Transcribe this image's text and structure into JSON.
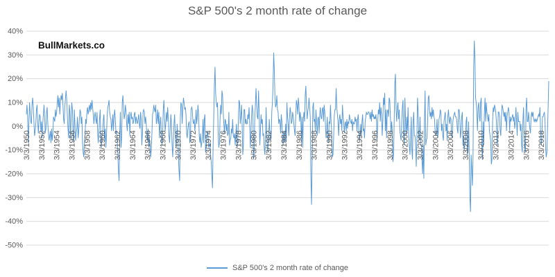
{
  "title": "S&P 500's 2 month rate of change",
  "watermark": "BullMarkets.co",
  "legend": {
    "label": "S&P 500's 2 month rate of change"
  },
  "colors": {
    "line": "#5B9BD5",
    "gridline": "#D9D9D9",
    "axis_text": "#595959",
    "title_text": "#595959",
    "background": "#FFFFFF"
  },
  "chart_data": {
    "type": "line",
    "title": "S&P 500's 2 month rate of change",
    "legend_position": "bottom-center",
    "grid": "horizontal",
    "ylim": [
      -50,
      40
    ],
    "y_tick_step_pct": 10,
    "y_tick_labels": [
      "40%",
      "30%",
      "20%",
      "10%",
      "0%",
      "-10%",
      "-20%",
      "-30%",
      "-40%",
      "-50%"
    ],
    "x_tick_labels": [
      "3/3/1950",
      "3/3/1952",
      "3/3/1954",
      "3/3/1956",
      "3/3/1958",
      "3/3/1960",
      "3/3/1962",
      "3/3/1964",
      "3/3/1966",
      "3/3/1968",
      "3/3/1970",
      "3/3/1972",
      "3/3/1974",
      "3/3/1976",
      "3/3/1978",
      "3/3/1980",
      "3/3/1982",
      "3/3/1984",
      "3/3/1986",
      "3/3/1988",
      "3/3/1990",
      "3/3/1992",
      "3/3/1994",
      "3/3/1996",
      "3/3/1998",
      "3/3/2000",
      "3/3/2002",
      "3/3/2004",
      "3/3/2006",
      "3/3/2008",
      "3/3/2010",
      "3/3/2012",
      "3/3/2014",
      "3/3/2016",
      "3/3/2018"
    ],
    "x_tick_every_points": 24,
    "series": [
      {
        "name": "S&P 500's 2 month rate of change",
        "values_pct": [
          5,
          9,
          4,
          -7,
          1,
          10,
          6,
          2,
          1,
          9,
          12,
          8,
          2,
          -4,
          -2,
          1,
          7,
          9,
          2,
          -3,
          2,
          5,
          4,
          -2,
          2,
          -5,
          1,
          5,
          9,
          4,
          -3,
          -1,
          6,
          8,
          1,
          -3,
          -6,
          -4,
          -2,
          -7,
          -1,
          -6,
          -3,
          4,
          3,
          2,
          7,
          4,
          6,
          10,
          13,
          8,
          12,
          5,
          10,
          13,
          11,
          14,
          9,
          3,
          1,
          8,
          12,
          15,
          11,
          4,
          -1,
          -5,
          9,
          6,
          -5,
          4,
          10,
          7,
          -4,
          -7,
          7,
          1,
          -6,
          -3,
          -1,
          4,
          -5,
          -2,
          3,
          7,
          6,
          1,
          4,
          -7,
          -11,
          -13,
          -7,
          -4,
          3,
          1,
          6,
          8,
          5,
          7,
          9,
          6,
          10,
          7,
          11,
          8,
          5,
          1,
          4,
          6,
          3,
          1,
          6,
          -3,
          -7,
          -2,
          3,
          7,
          -6,
          -9,
          -3,
          -2,
          3,
          5,
          -6,
          -1,
          -9,
          -4,
          4,
          8,
          9,
          11,
          6,
          4,
          3,
          -2,
          1,
          5,
          -2,
          4,
          7,
          3,
          -3,
          -2,
          -6,
          -12,
          -19,
          -23,
          -4,
          6,
          -9,
          -5,
          10,
          13,
          8,
          3,
          5,
          9,
          6,
          1,
          -2,
          5,
          1,
          6,
          -4,
          4,
          6,
          3,
          4,
          1,
          2,
          5,
          6,
          1,
          4,
          2,
          1,
          3,
          5,
          1,
          -1,
          6,
          3,
          -8,
          -3,
          6,
          7,
          6,
          1,
          4,
          1,
          -4,
          -6,
          -1,
          -9,
          -5,
          -7,
          -13,
          -10,
          -3,
          5,
          6,
          9,
          7,
          6,
          9,
          1,
          3,
          7,
          1,
          6,
          -5,
          1,
          4,
          -4,
          -8,
          -3,
          7,
          11,
          4,
          -2,
          1,
          6,
          2,
          8,
          3,
          -4,
          -7,
          -1,
          5,
          1,
          -8,
          -13,
          -6,
          1,
          5,
          -3,
          -9,
          -7,
          1,
          -4,
          -13,
          -19,
          -23,
          3,
          10,
          9,
          1,
          8,
          12,
          10,
          7,
          8,
          5,
          -3,
          -5,
          -1,
          1,
          2,
          -7,
          -5,
          7,
          8,
          7,
          2,
          1,
          3,
          -2,
          1,
          7,
          1,
          4,
          9,
          5,
          -4,
          -7,
          -3,
          -9,
          -7,
          -5,
          3,
          -7,
          3,
          5,
          -11,
          -9,
          -5,
          -2,
          -4,
          -9,
          -8,
          -7,
          -12,
          -15,
          -21,
          -26,
          -8,
          4,
          17,
          25,
          14,
          10,
          8,
          10,
          -3,
          -9,
          -7,
          3,
          9,
          5,
          15,
          13,
          6,
          1,
          -3,
          3,
          2,
          -2,
          1,
          -4,
          -3,
          6,
          -8,
          -6,
          -5,
          -1,
          -3,
          3,
          -4,
          -5,
          -3,
          -8,
          -3,
          1,
          -9,
          -7,
          2,
          11,
          10,
          1,
          4,
          9,
          1,
          -12,
          -8,
          7,
          7,
          1,
          3,
          1,
          1,
          5,
          3,
          8,
          1,
          -9,
          -3,
          5,
          9,
          6,
          -14,
          -11,
          3,
          9,
          16,
          9,
          4,
          3,
          15,
          6,
          -8,
          -2,
          5,
          1,
          3,
          -4,
          -3,
          -9,
          -12,
          -5,
          8,
          -3,
          -9,
          -11,
          -5,
          3,
          -3,
          -6,
          -5,
          6,
          10,
          17,
          31,
          24,
          12,
          8,
          9,
          13,
          7,
          6,
          1,
          3,
          2,
          -3,
          5,
          2,
          -5,
          -8,
          -2,
          -4,
          -7,
          1,
          -6,
          10,
          4,
          1,
          -4,
          3,
          8,
          6,
          1,
          2,
          6,
          4,
          1,
          -2,
          -4,
          5,
          11,
          9,
          5,
          12,
          9,
          2,
          6,
          3,
          -7,
          4,
          -9,
          3,
          6,
          2,
          13,
          17,
          9,
          3,
          6,
          8,
          12,
          8,
          4,
          -22,
          -33,
          -12,
          8,
          10,
          2,
          3,
          -2,
          7,
          2,
          -4,
          3,
          4,
          -3,
          5,
          8,
          4,
          3,
          7,
          8,
          2,
          9,
          6,
          1,
          -5,
          -2,
          4,
          -4,
          -7,
          2,
          1,
          9,
          2,
          -3,
          -13,
          -12,
          -5,
          4,
          7,
          7,
          16,
          8,
          5,
          2,
          -4,
          3,
          5,
          1,
          3,
          -2,
          9,
          4,
          2,
          -3,
          1,
          2,
          -2,
          3,
          -1,
          2,
          1,
          5,
          3,
          2,
          1,
          3,
          -2,
          2,
          1,
          1,
          4,
          2,
          3,
          -2,
          3,
          5,
          -2,
          -6,
          -4,
          1,
          -4,
          2,
          5,
          -2,
          -1,
          -5,
          2,
          4,
          6,
          5,
          5,
          6,
          6,
          5,
          3,
          6,
          2,
          7,
          4,
          5,
          3,
          4,
          3,
          5,
          2,
          -6,
          3,
          7,
          5,
          10,
          2,
          8,
          5,
          -4,
          2,
          12,
          9,
          14,
          -2,
          7,
          -5,
          6,
          7,
          4,
          12,
          11,
          4,
          -3,
          2,
          -2,
          -15,
          -12,
          2,
          18,
          22,
          7,
          2,
          8,
          10,
          3,
          7,
          -2,
          -4,
          -6,
          2,
          8,
          11,
          -3,
          -8,
          12,
          2,
          -4,
          4,
          -2,
          8,
          -4,
          -8,
          -12,
          -5,
          4,
          -10,
          -14,
          2,
          6,
          -4,
          -4,
          -8,
          -17,
          -5,
          12,
          6,
          -4,
          -6,
          4,
          -7,
          -8,
          -14,
          -20,
          -8,
          -22,
          2,
          15,
          -8,
          -6,
          -5,
          2,
          12,
          13,
          7,
          4,
          6,
          3,
          8,
          4,
          7,
          4,
          3,
          -3,
          -4,
          -2,
          3,
          -5,
          -2,
          3,
          4,
          7,
          6,
          -2,
          1,
          -4,
          -6,
          2,
          4,
          6,
          -2,
          1,
          -6,
          4,
          7,
          3,
          1,
          4,
          3,
          -4,
          -5,
          2,
          4,
          5,
          6,
          4,
          4,
          3,
          -1,
          -3,
          7,
          7,
          3,
          -5,
          -2,
          4,
          6,
          -8,
          -4,
          -10,
          -8,
          -6,
          2,
          4,
          -12,
          -10,
          2,
          -12,
          -30,
          -36,
          -12,
          -18,
          -25,
          -12,
          25,
          36,
          28,
          12,
          10,
          6,
          -2,
          8,
          10,
          4,
          2,
          10,
          12,
          -10,
          -14,
          2,
          -8,
          6,
          12,
          2,
          10,
          6,
          4,
          2,
          5,
          -2,
          -4,
          -6,
          -16,
          -14,
          2,
          8,
          6,
          9,
          8,
          6,
          2,
          -8,
          -4,
          6,
          6,
          4,
          -2,
          -4,
          4,
          9,
          8,
          6,
          4,
          6,
          2,
          6,
          -2,
          4,
          6,
          8,
          6,
          -2,
          4,
          2,
          3,
          4,
          5,
          2,
          4,
          -1,
          2,
          8,
          2,
          -4,
          6,
          2,
          2,
          2,
          -2,
          1,
          -8,
          -11,
          2,
          8,
          -3,
          -9,
          -11,
          8,
          12,
          2,
          2,
          6,
          2,
          -1,
          -3,
          4,
          6,
          4,
          6,
          3,
          2,
          3,
          2,
          3,
          2,
          3,
          4,
          5,
          4,
          8,
          -2,
          -8,
          -6,
          4,
          4,
          5,
          6,
          3,
          -9,
          -13,
          -11,
          -2,
          8,
          19
        ]
      }
    ]
  }
}
